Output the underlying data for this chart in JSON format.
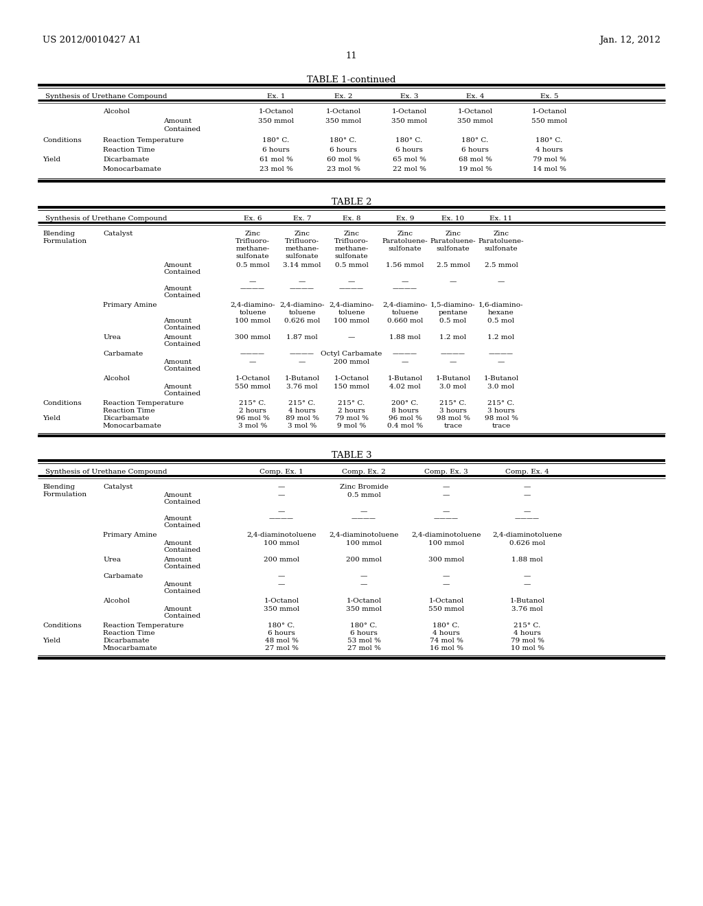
{
  "bg_color": "#ffffff",
  "header_left": "US 2012/0010427 A1",
  "header_right": "Jan. 12, 2012",
  "page_number": "11",
  "table1_title": "TABLE 1-continued",
  "table2_title": "TABLE 2",
  "table3_title": "TABLE 3"
}
